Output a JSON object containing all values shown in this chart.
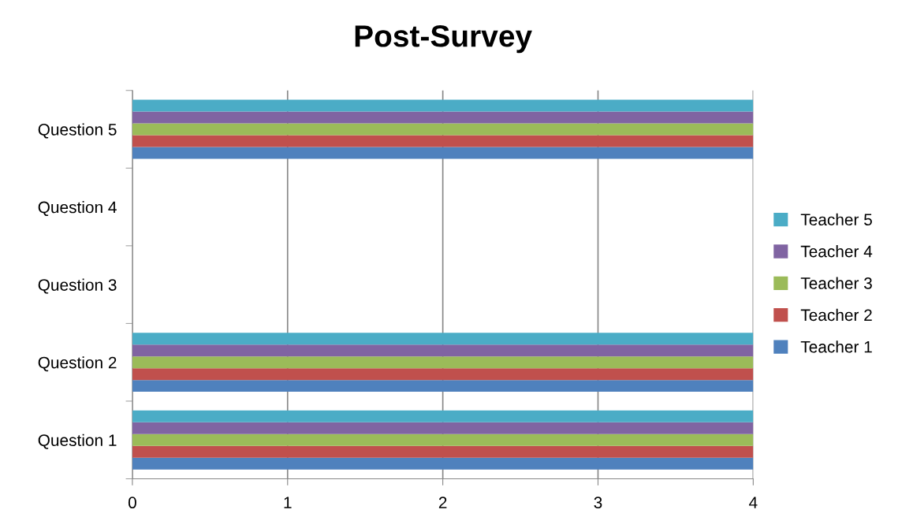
{
  "chart_data": {
    "type": "bar",
    "orientation": "horizontal",
    "title": "Post-Survey",
    "categories": [
      "Question 5",
      "Question 4",
      "Question 3",
      "Question 2",
      "Question 1"
    ],
    "series": [
      {
        "name": "Teacher 1",
        "color": "#4f81bd",
        "values": [
          4,
          null,
          null,
          4,
          4
        ]
      },
      {
        "name": "Teacher 2",
        "color": "#c0504d",
        "values": [
          4,
          null,
          null,
          4,
          4
        ]
      },
      {
        "name": "Teacher 3",
        "color": "#9bbb59",
        "values": [
          4,
          null,
          null,
          4,
          4
        ]
      },
      {
        "name": "Teacher 4",
        "color": "#8064a2",
        "values": [
          4,
          null,
          null,
          4,
          4
        ]
      },
      {
        "name": "Teacher 5",
        "color": "#4bacc6",
        "values": [
          4,
          null,
          null,
          4,
          4
        ]
      }
    ],
    "xlim": [
      0,
      4
    ],
    "xticks": [
      0,
      1,
      2,
      3,
      4
    ],
    "grid": "x",
    "legend": "right"
  }
}
